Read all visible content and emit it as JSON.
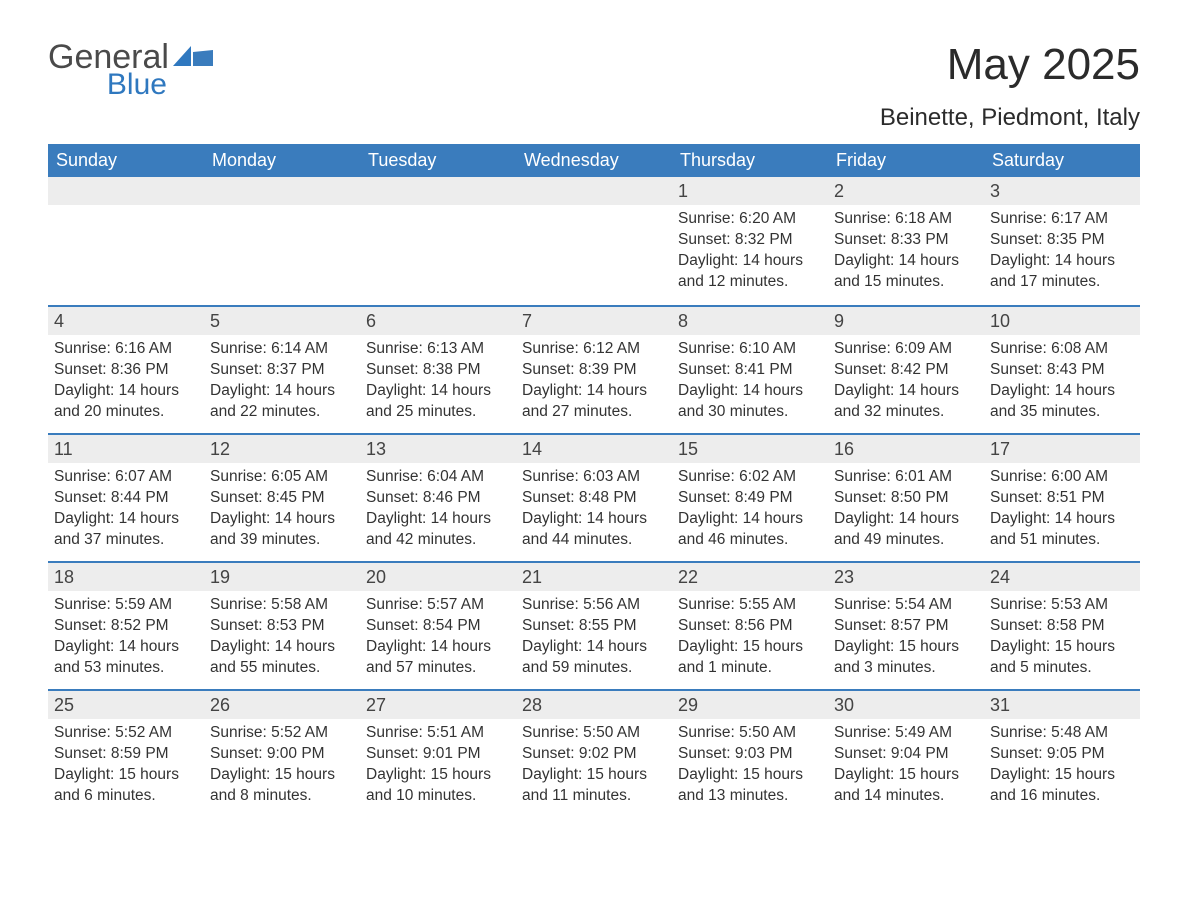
{
  "brand": {
    "name_part1": "General",
    "name_part2": "Blue",
    "color_gray": "#4a4a4a",
    "color_blue": "#2f78bf"
  },
  "title": "May 2025",
  "location": "Beinette, Piedmont, Italy",
  "colors": {
    "header_bg": "#3a7cbd",
    "header_text": "#ffffff",
    "daynum_bg": "#ededed",
    "week_divider": "#3a7cbd",
    "body_text": "#333333",
    "page_bg": "#ffffff"
  },
  "typography": {
    "title_fontsize": 44,
    "location_fontsize": 24,
    "header_fontsize": 18,
    "body_fontsize": 15.5
  },
  "day_labels": [
    "Sunday",
    "Monday",
    "Tuesday",
    "Wednesday",
    "Thursday",
    "Friday",
    "Saturday"
  ],
  "weeks": [
    [
      null,
      null,
      null,
      null,
      {
        "n": "1",
        "sunrise": "6:20 AM",
        "sunset": "8:32 PM",
        "daylight": "14 hours and 12 minutes."
      },
      {
        "n": "2",
        "sunrise": "6:18 AM",
        "sunset": "8:33 PM",
        "daylight": "14 hours and 15 minutes."
      },
      {
        "n": "3",
        "sunrise": "6:17 AM",
        "sunset": "8:35 PM",
        "daylight": "14 hours and 17 minutes."
      }
    ],
    [
      {
        "n": "4",
        "sunrise": "6:16 AM",
        "sunset": "8:36 PM",
        "daylight": "14 hours and 20 minutes."
      },
      {
        "n": "5",
        "sunrise": "6:14 AM",
        "sunset": "8:37 PM",
        "daylight": "14 hours and 22 minutes."
      },
      {
        "n": "6",
        "sunrise": "6:13 AM",
        "sunset": "8:38 PM",
        "daylight": "14 hours and 25 minutes."
      },
      {
        "n": "7",
        "sunrise": "6:12 AM",
        "sunset": "8:39 PM",
        "daylight": "14 hours and 27 minutes."
      },
      {
        "n": "8",
        "sunrise": "6:10 AM",
        "sunset": "8:41 PM",
        "daylight": "14 hours and 30 minutes."
      },
      {
        "n": "9",
        "sunrise": "6:09 AM",
        "sunset": "8:42 PM",
        "daylight": "14 hours and 32 minutes."
      },
      {
        "n": "10",
        "sunrise": "6:08 AM",
        "sunset": "8:43 PM",
        "daylight": "14 hours and 35 minutes."
      }
    ],
    [
      {
        "n": "11",
        "sunrise": "6:07 AM",
        "sunset": "8:44 PM",
        "daylight": "14 hours and 37 minutes."
      },
      {
        "n": "12",
        "sunrise": "6:05 AM",
        "sunset": "8:45 PM",
        "daylight": "14 hours and 39 minutes."
      },
      {
        "n": "13",
        "sunrise": "6:04 AM",
        "sunset": "8:46 PM",
        "daylight": "14 hours and 42 minutes."
      },
      {
        "n": "14",
        "sunrise": "6:03 AM",
        "sunset": "8:48 PM",
        "daylight": "14 hours and 44 minutes."
      },
      {
        "n": "15",
        "sunrise": "6:02 AM",
        "sunset": "8:49 PM",
        "daylight": "14 hours and 46 minutes."
      },
      {
        "n": "16",
        "sunrise": "6:01 AM",
        "sunset": "8:50 PM",
        "daylight": "14 hours and 49 minutes."
      },
      {
        "n": "17",
        "sunrise": "6:00 AM",
        "sunset": "8:51 PM",
        "daylight": "14 hours and 51 minutes."
      }
    ],
    [
      {
        "n": "18",
        "sunrise": "5:59 AM",
        "sunset": "8:52 PM",
        "daylight": "14 hours and 53 minutes."
      },
      {
        "n": "19",
        "sunrise": "5:58 AM",
        "sunset": "8:53 PM",
        "daylight": "14 hours and 55 minutes."
      },
      {
        "n": "20",
        "sunrise": "5:57 AM",
        "sunset": "8:54 PM",
        "daylight": "14 hours and 57 minutes."
      },
      {
        "n": "21",
        "sunrise": "5:56 AM",
        "sunset": "8:55 PM",
        "daylight": "14 hours and 59 minutes."
      },
      {
        "n": "22",
        "sunrise": "5:55 AM",
        "sunset": "8:56 PM",
        "daylight": "15 hours and 1 minute."
      },
      {
        "n": "23",
        "sunrise": "5:54 AM",
        "sunset": "8:57 PM",
        "daylight": "15 hours and 3 minutes."
      },
      {
        "n": "24",
        "sunrise": "5:53 AM",
        "sunset": "8:58 PM",
        "daylight": "15 hours and 5 minutes."
      }
    ],
    [
      {
        "n": "25",
        "sunrise": "5:52 AM",
        "sunset": "8:59 PM",
        "daylight": "15 hours and 6 minutes."
      },
      {
        "n": "26",
        "sunrise": "5:52 AM",
        "sunset": "9:00 PM",
        "daylight": "15 hours and 8 minutes."
      },
      {
        "n": "27",
        "sunrise": "5:51 AM",
        "sunset": "9:01 PM",
        "daylight": "15 hours and 10 minutes."
      },
      {
        "n": "28",
        "sunrise": "5:50 AM",
        "sunset": "9:02 PM",
        "daylight": "15 hours and 11 minutes."
      },
      {
        "n": "29",
        "sunrise": "5:50 AM",
        "sunset": "9:03 PM",
        "daylight": "15 hours and 13 minutes."
      },
      {
        "n": "30",
        "sunrise": "5:49 AM",
        "sunset": "9:04 PM",
        "daylight": "15 hours and 14 minutes."
      },
      {
        "n": "31",
        "sunrise": "5:48 AM",
        "sunset": "9:05 PM",
        "daylight": "15 hours and 16 minutes."
      }
    ]
  ],
  "labels": {
    "sunrise": "Sunrise: ",
    "sunset": "Sunset: ",
    "daylight": "Daylight: "
  }
}
